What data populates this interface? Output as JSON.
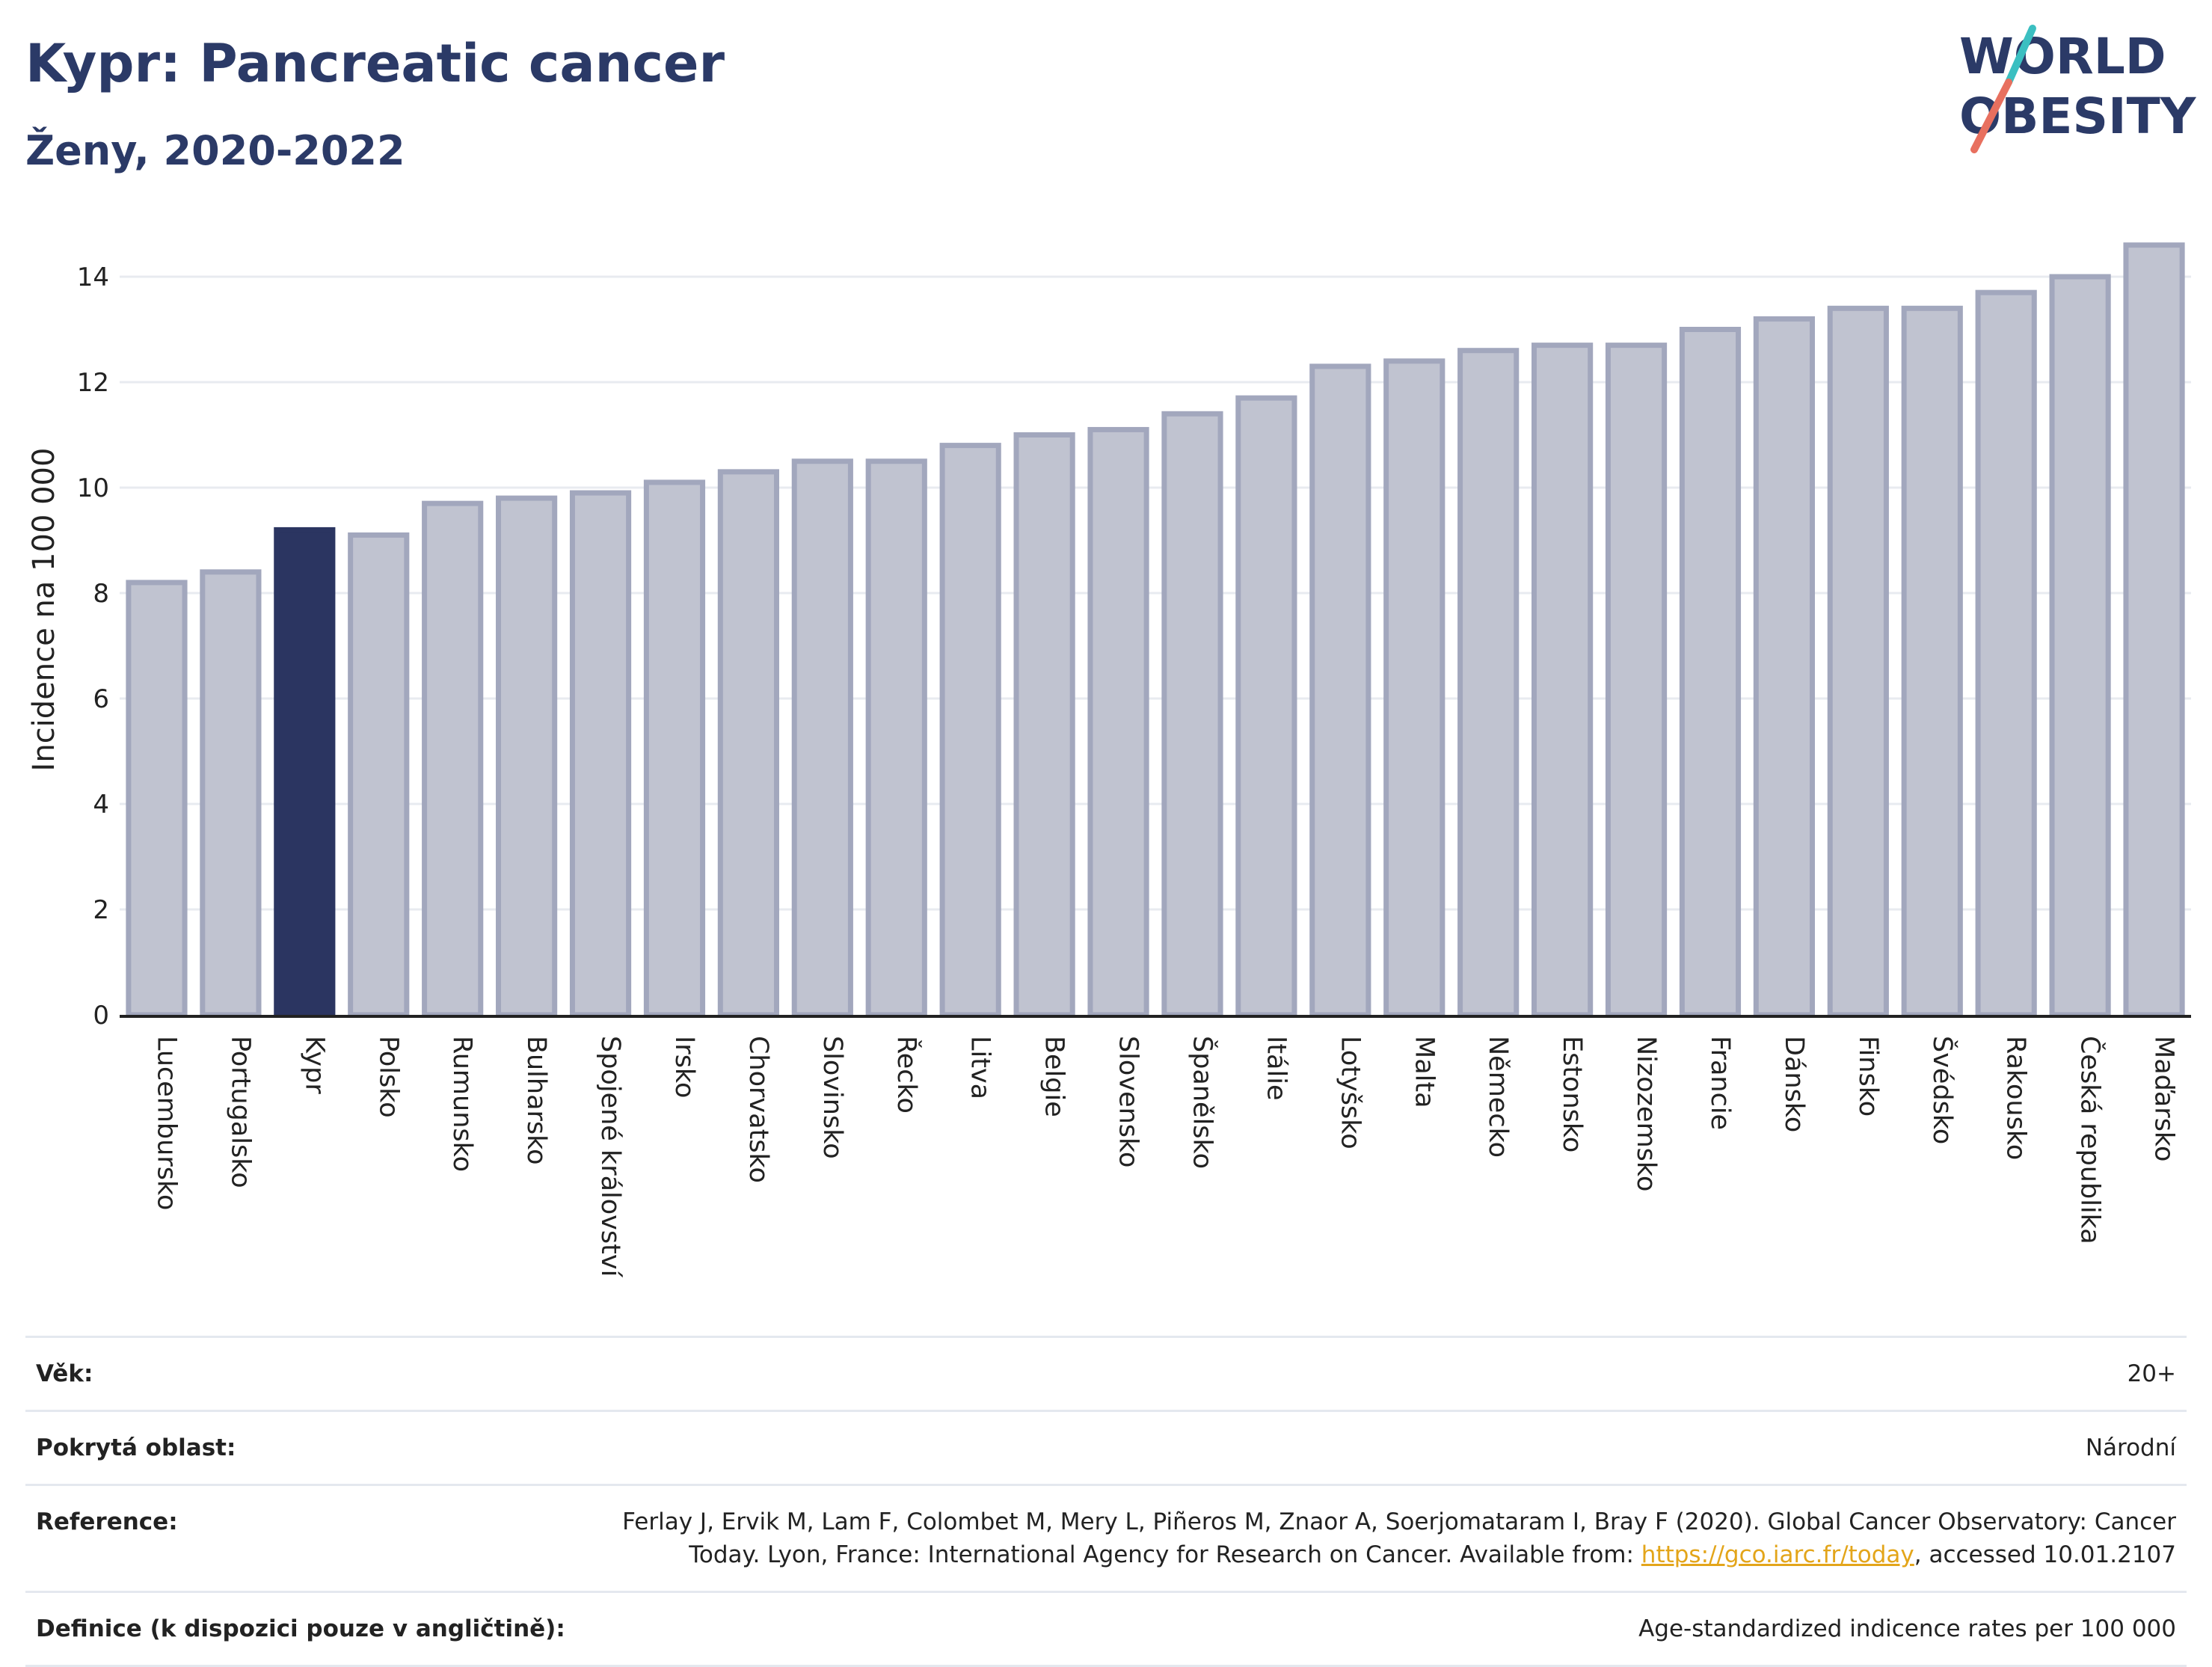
{
  "header": {
    "title": "Kypr: Pancreatic cancer",
    "subtitle": "Ženy, 2020-2022"
  },
  "logo": {
    "line1": "WORLD",
    "line2": "OBESITY",
    "colors": {
      "text": "#2b3a67",
      "teal": "#3bbfc1",
      "coral": "#e8705f"
    }
  },
  "chart_data": {
    "type": "bar",
    "title": "",
    "xlabel": "",
    "ylabel": "Incidence na 100 000",
    "ylim": [
      0,
      15
    ],
    "yticks": [
      0,
      2,
      4,
      6,
      8,
      10,
      12,
      14
    ],
    "grid": true,
    "highlight": "Kypr",
    "colors": {
      "bar": "#c0c3d0",
      "bar_border": "#a2a7bd",
      "highlight": "#2b3561",
      "grid": "#e8ebf0",
      "axis": "#222222"
    },
    "categories": [
      "Lucembursko",
      "Portugalsko",
      "Kypr",
      "Polsko",
      "Rumunsko",
      "Bulharsko",
      "Spojené království",
      "Irsko",
      "Chorvatsko",
      "Slovinsko",
      "Řecko",
      "Litva",
      "Belgie",
      "Slovensko",
      "Španělsko",
      "Itálie",
      "Lotyšsko",
      "Malta",
      "Německo",
      "Estonsko",
      "Nizozemsko",
      "Francie",
      "Dánsko",
      "Finsko",
      "Švédsko",
      "Rakousko",
      "Česká republika",
      "Maďarsko"
    ],
    "values": [
      8.2,
      8.4,
      9.2,
      9.1,
      9.7,
      9.8,
      9.9,
      10.1,
      10.3,
      10.5,
      10.5,
      10.8,
      11.0,
      11.1,
      11.4,
      11.7,
      12.3,
      12.4,
      12.6,
      12.7,
      12.7,
      13.0,
      13.2,
      13.4,
      13.4,
      13.7,
      14.0,
      14.6
    ]
  },
  "meta": {
    "rows": [
      {
        "key": "Věk:",
        "value": "20+"
      },
      {
        "key": "Pokrytá oblast:",
        "value": "Národní"
      },
      {
        "key": "Reference:",
        "value_before": "Ferlay J, Ervik M, Lam F, Colombet M, Mery L, Piñeros M, Znaor A, Soerjomataram I, Bray F (2020). Global Cancer Observatory: Cancer Today. Lyon, France: International Agency for Research on Cancer. Available from: ",
        "link": "https://gco.iarc.fr/today",
        "value_after": ", accessed 10.01.2107"
      },
      {
        "key": "Definice (k dispozici pouze v angličtině):",
        "value": "Age-standardized indicence rates per 100 000"
      }
    ]
  }
}
